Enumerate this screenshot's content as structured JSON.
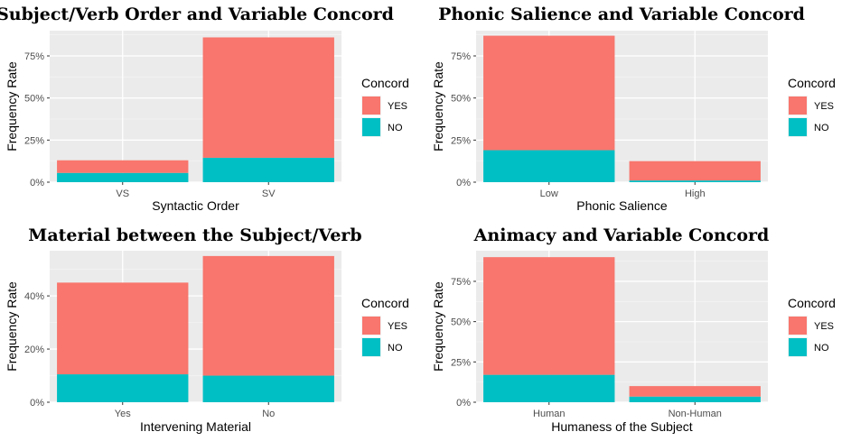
{
  "colors": {
    "yes": "#F8766D",
    "no": "#00BFC4"
  },
  "chart_data": [
    {
      "type": "bar",
      "stacked": true,
      "title": "Subject/Verb Order and Variable Concord",
      "xlabel": "Syntactic Order",
      "ylabel": "Frequency Rate",
      "categories": [
        "VS",
        "SV"
      ],
      "series": [
        {
          "name": "YES",
          "values": [
            7.5,
            71.5
          ]
        },
        {
          "name": "NO",
          "values": [
            5.5,
            14.5
          ]
        }
      ],
      "ylim": [
        0,
        90
      ],
      "yticks": [
        0,
        25,
        50,
        75
      ],
      "ytick_labels": [
        "0%",
        "25%",
        "50%",
        "75%"
      ],
      "legend_title": "Concord",
      "legend_labels": [
        "YES",
        "NO"
      ],
      "legend_position": "right",
      "grid": true
    },
    {
      "type": "bar",
      "stacked": true,
      "title": "Phonic Salience and Variable Concord",
      "xlabel": "Phonic Salience",
      "ylabel": "Frequency Rate",
      "categories": [
        "Low",
        "High"
      ],
      "series": [
        {
          "name": "YES",
          "values": [
            68,
            11.5
          ]
        },
        {
          "name": "NO",
          "values": [
            19,
            1
          ]
        }
      ],
      "ylim": [
        0,
        90
      ],
      "yticks": [
        0,
        25,
        50,
        75
      ],
      "ytick_labels": [
        "0%",
        "25%",
        "50%",
        "75%"
      ],
      "legend_title": "Concord",
      "legend_labels": [
        "YES",
        "NO"
      ],
      "legend_position": "right",
      "grid": true
    },
    {
      "type": "bar",
      "stacked": true,
      "title": "Material between the Subject/Verb",
      "xlabel": "Intervening Material",
      "ylabel": "Frequency Rate",
      "categories": [
        "Yes",
        "No"
      ],
      "series": [
        {
          "name": "YES",
          "values": [
            34.5,
            45
          ]
        },
        {
          "name": "NO",
          "values": [
            10.5,
            10
          ]
        }
      ],
      "ylim": [
        0,
        57
      ],
      "yticks": [
        0,
        20,
        40
      ],
      "ytick_labels": [
        "0%",
        "20%",
        "40%"
      ],
      "legend_title": "Concord",
      "legend_labels": [
        "YES",
        "NO"
      ],
      "legend_position": "right",
      "grid": true
    },
    {
      "type": "bar",
      "stacked": true,
      "title": "Animacy and Variable Concord",
      "xlabel": "Humaness of the Subject",
      "ylabel": "Frequency Rate",
      "categories": [
        "Human",
        "Non-Human"
      ],
      "series": [
        {
          "name": "YES",
          "values": [
            73,
            6.5
          ]
        },
        {
          "name": "NO",
          "values": [
            17,
            3.5
          ]
        }
      ],
      "ylim": [
        0,
        94
      ],
      "yticks": [
        0,
        25,
        50,
        75
      ],
      "ytick_labels": [
        "0%",
        "25%",
        "50%",
        "75%"
      ],
      "legend_title": "Concord",
      "legend_labels": [
        "YES",
        "NO"
      ],
      "legend_position": "right",
      "grid": true
    }
  ]
}
